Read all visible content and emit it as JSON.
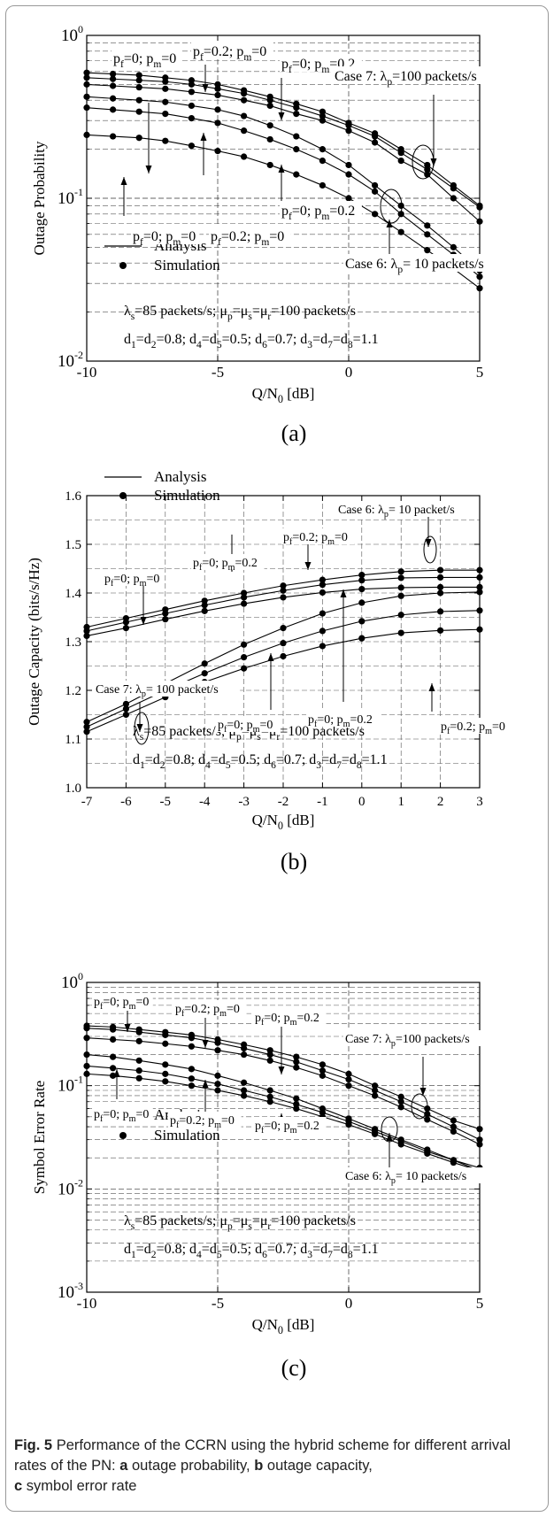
{
  "figure": {
    "caption_label": "Fig. 5",
    "caption_text": "Performance of the CCRN using the hybrid scheme for different arrival rates of the PN: ",
    "caption_a_key": "a",
    "caption_a": " outage probability, ",
    "caption_b_key": "b",
    "caption_b": " outage capacity,",
    "caption_c_key": "c",
    "caption_c": " symbol error rate"
  },
  "chart_data": [
    {
      "type": "line",
      "panel": "(a)",
      "xlabel": "Q/N0 [dB]",
      "ylabel": "Outage Probability",
      "yscale": "log",
      "xlim": [
        -10,
        5
      ],
      "ylim": [
        0.01,
        1
      ],
      "xticks": [
        "-10",
        "-5",
        "0",
        "5"
      ],
      "yticks": [
        "10^0",
        "10^-1",
        "10^-2"
      ],
      "legend": [
        "Analysis",
        "Simulation"
      ],
      "legend_position": "lower-left",
      "grid": true,
      "params": [
        "λs=85 packets/s; μp=μs=μr=100 packets/s",
        "d1=d2=0.8; d4=d5=0.5; d6=0.7; d3=d7=d8=1.1"
      ],
      "annotations": [
        "pf=0; pm=0",
        "pf=0.2; pm=0",
        "pf=0; pm=0.2",
        "Case 7: λp=100 packets/s",
        "pf=0; pm=0",
        "pf=0.2; pm=0",
        "pf=0; pm=0.2",
        "Case 6: λp= 10 packets/s"
      ],
      "x": [
        -10,
        -9,
        -8,
        -7,
        -6,
        -5,
        -4,
        -3,
        -2,
        -1,
        0,
        1,
        2,
        3,
        4,
        5
      ],
      "series": [
        {
          "group": "Case 7",
          "label": "pf=0; pm=0",
          "values": [
            0.59,
            0.58,
            0.57,
            0.55,
            0.53,
            0.5,
            0.46,
            0.42,
            0.38,
            0.34,
            0.29,
            0.25,
            0.2,
            0.16,
            0.12,
            0.09
          ]
        },
        {
          "group": "Case 7",
          "label": "pf=0.2; pm=0",
          "values": [
            0.55,
            0.54,
            0.53,
            0.52,
            0.5,
            0.47,
            0.44,
            0.4,
            0.36,
            0.32,
            0.28,
            0.24,
            0.19,
            0.15,
            0.115,
            0.088
          ]
        },
        {
          "group": "Case 7",
          "label": "pf=0; pm=0.2",
          "values": [
            0.5,
            0.49,
            0.48,
            0.47,
            0.45,
            0.43,
            0.4,
            0.37,
            0.33,
            0.3,
            0.26,
            0.22,
            0.17,
            0.14,
            0.1,
            0.072
          ]
        },
        {
          "group": "Case 6",
          "label": "pf=0; pm=0",
          "values": [
            0.42,
            0.41,
            0.4,
            0.39,
            0.37,
            0.35,
            0.32,
            0.28,
            0.24,
            0.2,
            0.16,
            0.12,
            0.09,
            0.068,
            0.05,
            0.036
          ]
        },
        {
          "group": "Case 6",
          "label": "pf=0.2; pm=0",
          "values": [
            0.36,
            0.35,
            0.34,
            0.33,
            0.31,
            0.29,
            0.26,
            0.23,
            0.2,
            0.17,
            0.14,
            0.11,
            0.08,
            0.06,
            0.045,
            0.033
          ]
        },
        {
          "group": "Case 6",
          "label": "pf=0; pm=0.2",
          "values": [
            0.245,
            0.24,
            0.235,
            0.225,
            0.21,
            0.195,
            0.18,
            0.16,
            0.14,
            0.12,
            0.1,
            0.08,
            0.062,
            0.048,
            0.037,
            0.028
          ]
        }
      ]
    },
    {
      "type": "line",
      "panel": "(b)",
      "xlabel": "Q/N0 [dB]",
      "ylabel": "Outage Capacity (bits/s/Hz)",
      "yscale": "linear",
      "xlim": [
        -7,
        3
      ],
      "ylim": [
        1.0,
        1.6
      ],
      "xticks": [
        "-7",
        "-6",
        "-5",
        "-4",
        "-3",
        "-2",
        "-1",
        "0",
        "1",
        "2",
        "3"
      ],
      "yticks": [
        "1.0",
        "1.1",
        "1.2",
        "1.3",
        "1.4",
        "1.5",
        "1.6"
      ],
      "legend": [
        "Analysis",
        "Simulation"
      ],
      "legend_position": "top-left",
      "grid": true,
      "params": [
        "λs=85 packets/s; μp=μs=μr=100 packets/s",
        "d1=d2=0.8; d4=d5=0.5; d6=0.7; d3=d7=d8=1.1"
      ],
      "annotations": [
        "Case 6: λp= 10 packet/s",
        "pf=0.2; pm=0",
        "pf=0; pm=0.2",
        "pf=0; pm=0",
        "Case 7: λp= 100 packet/s",
        "pf=0; pm=0.2",
        "pf=0.2; pm=0",
        "pf=0; pm=0"
      ],
      "x": [
        -7,
        -6,
        -5,
        -4,
        -3,
        -2,
        -1,
        0,
        1,
        2,
        3
      ],
      "series": [
        {
          "group": "Case 6",
          "label": "pf=0; pm=0",
          "values": [
            1.33,
            1.348,
            1.366,
            1.384,
            1.4,
            1.415,
            1.427,
            1.437,
            1.444,
            1.447,
            1.447
          ]
        },
        {
          "group": "Case 6",
          "label": "pf=0.2; pm=0",
          "values": [
            1.322,
            1.34,
            1.358,
            1.375,
            1.391,
            1.405,
            1.417,
            1.426,
            1.431,
            1.432,
            1.432
          ]
        },
        {
          "group": "Case 6",
          "label": "pf=0; pm=0.2",
          "values": [
            1.312,
            1.328,
            1.346,
            1.363,
            1.378,
            1.391,
            1.401,
            1.408,
            1.411,
            1.412,
            1.412
          ]
        },
        {
          "group": "Case 7",
          "label": "pf=0; pm=0",
          "values": [
            1.135,
            1.172,
            1.214,
            1.255,
            1.294,
            1.328,
            1.358,
            1.38,
            1.394,
            1.4,
            1.402
          ]
        },
        {
          "group": "Case 7",
          "label": "pf=0; pm=0.2",
          "values": [
            1.125,
            1.162,
            1.2,
            1.235,
            1.268,
            1.297,
            1.322,
            1.342,
            1.355,
            1.362,
            1.364
          ]
        },
        {
          "group": "Case 7",
          "label": "pf=0.2; pm=0",
          "values": [
            1.115,
            1.15,
            1.186,
            1.217,
            1.245,
            1.27,
            1.291,
            1.307,
            1.318,
            1.323,
            1.325
          ]
        }
      ]
    },
    {
      "type": "line",
      "panel": "(c)",
      "xlabel": "Q/N0 [dB]",
      "ylabel": "Symbol Error Rate",
      "yscale": "log",
      "xlim": [
        -10,
        5
      ],
      "ylim": [
        0.001,
        1
      ],
      "xticks": [
        "-10",
        "-5",
        "0",
        "5"
      ],
      "yticks": [
        "10^0",
        "10^-1",
        "10^-2",
        "10^-3"
      ],
      "legend": [
        "Analysis",
        "Simulation"
      ],
      "legend_position": "lower-left",
      "grid": true,
      "params": [
        "λs=85 packets/s; μp=μs=μr=100 packets/s",
        "d1=d2=0.8; d4=d5=0.5; d6=0.7; d3=d7=d8=1.1"
      ],
      "annotations": [
        "pf=0; pm=0",
        "pf=0.2; pm=0",
        "pf=0; pm=0.2",
        "Case 7: λp=100 packets/s",
        "pf=0; pm=0",
        "pf=0.2; pm=0",
        "pf=0; pm=0.2",
        "Case 6: λp= 10 packets/s"
      ],
      "x": [
        -10,
        -9,
        -8,
        -7,
        -6,
        -5,
        -4,
        -3,
        -2,
        -1,
        0,
        1,
        2,
        3,
        4,
        5
      ],
      "series": [
        {
          "group": "Case 7",
          "label": "pf=0; pm=0",
          "values": [
            0.38,
            0.37,
            0.35,
            0.33,
            0.31,
            0.28,
            0.25,
            0.22,
            0.19,
            0.16,
            0.13,
            0.1,
            0.078,
            0.06,
            0.046,
            0.038
          ]
        },
        {
          "group": "Case 7",
          "label": "pf=0.2; pm=0",
          "values": [
            0.36,
            0.35,
            0.33,
            0.31,
            0.29,
            0.26,
            0.23,
            0.2,
            0.17,
            0.14,
            0.115,
            0.09,
            0.07,
            0.053,
            0.04,
            0.03
          ]
        },
        {
          "group": "Case 7",
          "label": "pf=0; pm=0.2",
          "values": [
            0.29,
            0.28,
            0.27,
            0.255,
            0.24,
            0.22,
            0.2,
            0.175,
            0.15,
            0.125,
            0.1,
            0.08,
            0.062,
            0.047,
            0.036,
            0.027
          ]
        },
        {
          "group": "Case 6",
          "label": "pf=0; pm=0",
          "values": [
            0.2,
            0.19,
            0.175,
            0.16,
            0.145,
            0.125,
            0.107,
            0.09,
            0.075,
            0.06,
            0.048,
            0.038,
            0.03,
            0.024,
            0.019,
            0.015
          ]
        },
        {
          "group": "Case 6",
          "label": "pf=0.2; pm=0",
          "values": [
            0.155,
            0.148,
            0.14,
            0.13,
            0.117,
            0.104,
            0.09,
            0.078,
            0.066,
            0.055,
            0.045,
            0.036,
            0.029,
            0.023,
            0.019,
            0.016
          ]
        },
        {
          "group": "Case 6",
          "label": "pf=0; pm=0.2",
          "values": [
            0.13,
            0.125,
            0.118,
            0.11,
            0.1,
            0.09,
            0.08,
            0.07,
            0.06,
            0.05,
            0.042,
            0.034,
            0.027,
            0.022,
            0.018,
            0.015
          ]
        }
      ]
    }
  ]
}
